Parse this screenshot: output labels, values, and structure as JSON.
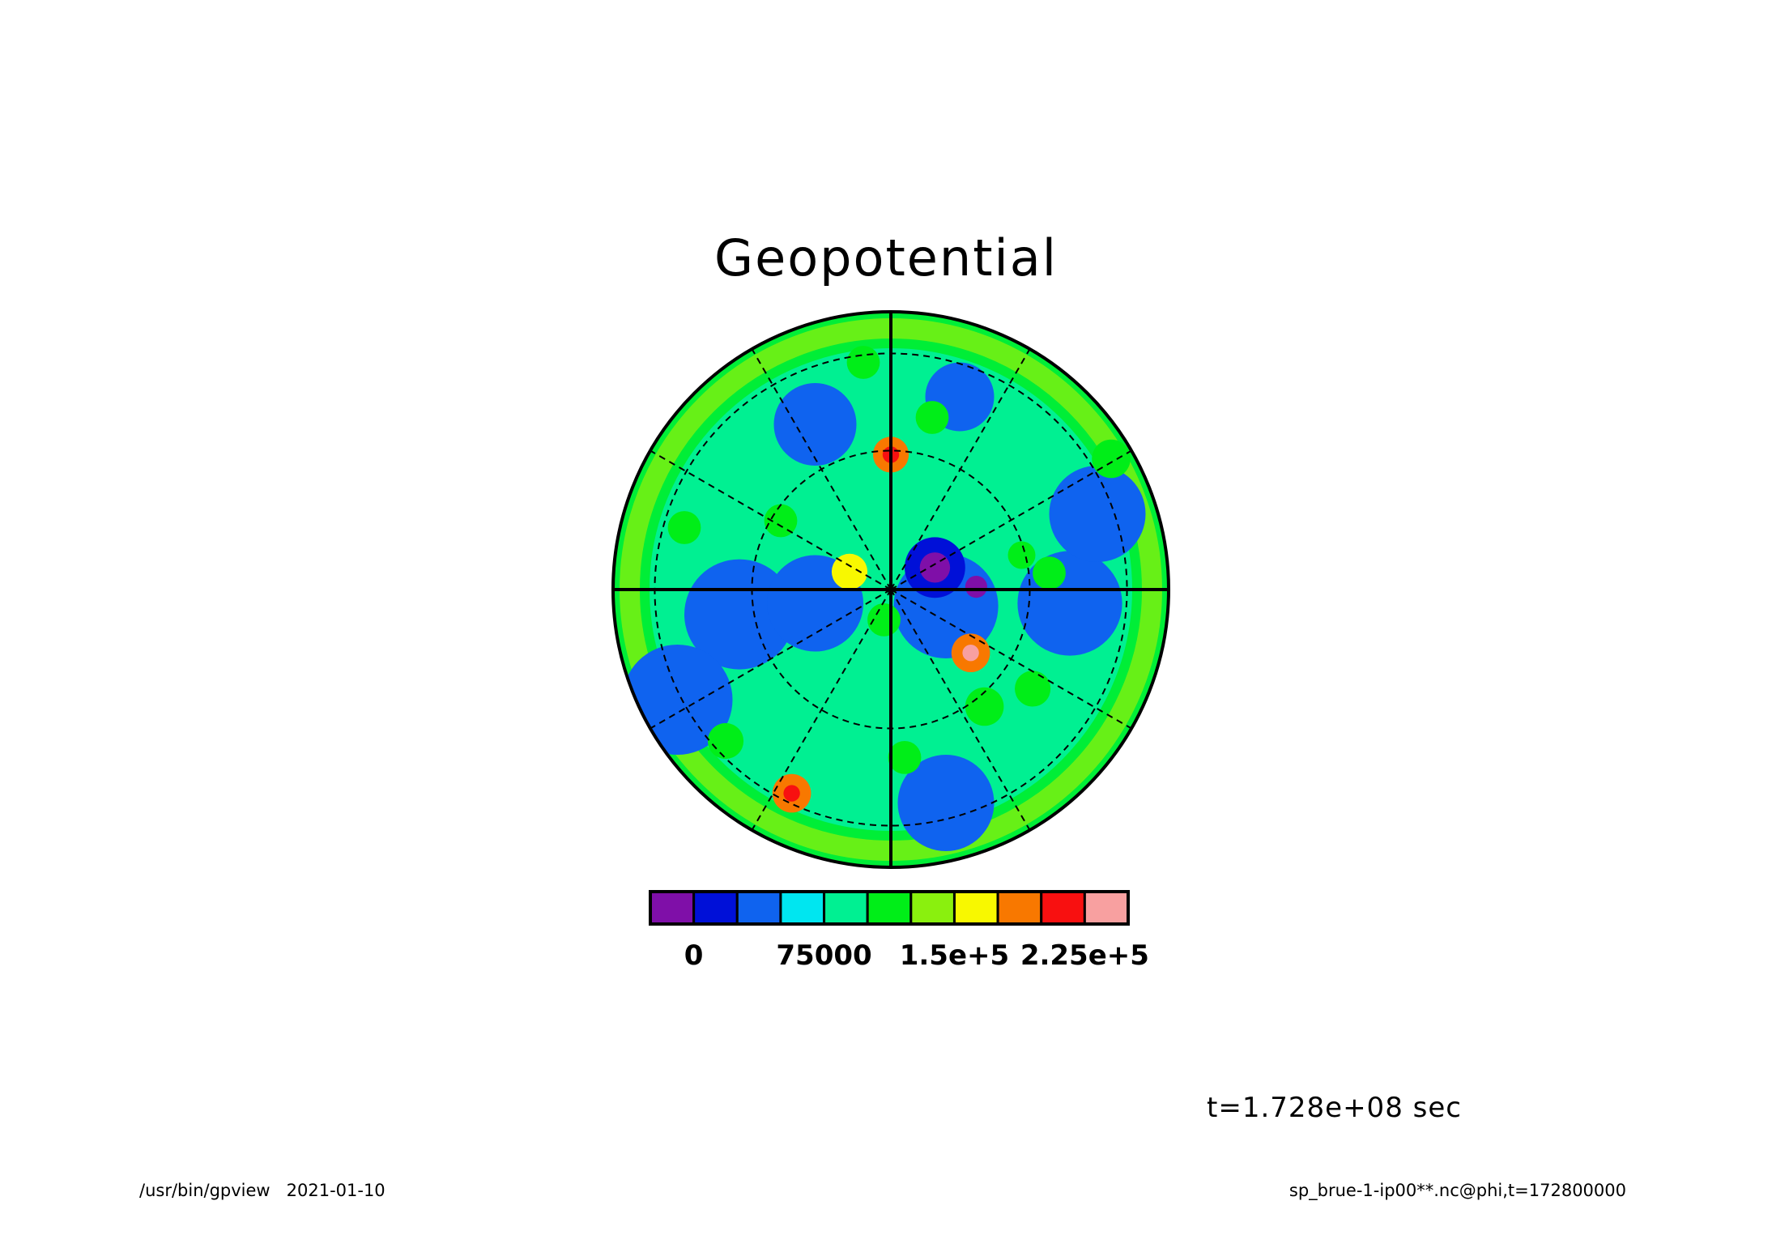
{
  "header": {
    "title": "Geopotential"
  },
  "annotations": {
    "time": "t=1.728e+08 sec",
    "footer_left": "/usr/bin/gpview   2021-01-10",
    "footer_right": "sp_brue-1-ip00**.nc@phi,t=172800000"
  },
  "chart_data": {
    "type": "heatmap",
    "projection": "polar-stereographic",
    "title": "Geopotential",
    "variable": "phi",
    "grid": true,
    "colorbar": {
      "orientation": "horizontal",
      "placement": "bottom",
      "levels": [
        -25000,
        0,
        25000,
        50000,
        75000,
        100000,
        125000,
        150000,
        175000,
        200000,
        225000,
        250000
      ],
      "colors": [
        "#7f0fa8",
        "#0010d8",
        "#0f63ef",
        "#00e6f0",
        "#00f092",
        "#00ee18",
        "#8af00e",
        "#f8f800",
        "#f87800",
        "#f81010",
        "#f8a0a0"
      ],
      "tick_values": [
        0,
        75000,
        150000,
        225000
      ],
      "tick_labels": [
        "0",
        "75000",
        "1.5e+5",
        "2.25e+5"
      ]
    },
    "features": [
      {
        "x": 0.0,
        "y": 0.98,
        "r": 0.13,
        "value": 175000
      },
      {
        "x": 0.0,
        "y": 0.98,
        "r": 0.06,
        "value": 215000
      },
      {
        "x": 0.58,
        "y": -0.46,
        "r": 0.14,
        "value": 190000
      },
      {
        "x": 0.58,
        "y": -0.46,
        "r": 0.06,
        "value": 230000
      },
      {
        "x": -0.3,
        "y": 0.13,
        "r": 0.13,
        "value": 160000
      },
      {
        "x": -0.72,
        "y": -1.48,
        "r": 0.14,
        "value": 180000
      },
      {
        "x": -0.72,
        "y": -1.48,
        "r": 0.06,
        "value": 215000
      },
      {
        "x": 0.32,
        "y": 0.16,
        "r": 0.22,
        "value": 15000
      },
      {
        "x": 0.32,
        "y": 0.16,
        "r": 0.11,
        "value": -8000
      },
      {
        "x": 0.62,
        "y": 0.02,
        "r": 0.08,
        "value": -5000
      },
      {
        "x": 0.4,
        "y": -0.12,
        "r": 0.38,
        "value": 35000
      },
      {
        "x": -1.1,
        "y": -0.18,
        "r": 0.4,
        "value": 40000
      },
      {
        "x": -0.55,
        "y": -0.1,
        "r": 0.35,
        "value": 40000
      },
      {
        "x": 1.3,
        "y": -0.1,
        "r": 0.38,
        "value": 40000
      },
      {
        "x": -1.55,
        "y": -0.8,
        "r": 0.4,
        "value": 45000
      },
      {
        "x": -0.55,
        "y": 1.2,
        "r": 0.3,
        "value": 45000
      },
      {
        "x": 0.4,
        "y": -1.55,
        "r": 0.35,
        "value": 45000
      },
      {
        "x": 1.5,
        "y": 0.55,
        "r": 0.35,
        "value": 45000
      },
      {
        "x": 0.5,
        "y": 1.4,
        "r": 0.25,
        "value": 45000
      },
      {
        "x": -0.05,
        "y": -0.22,
        "r": 0.12,
        "value": 110000
      },
      {
        "x": 0.68,
        "y": -0.85,
        "r": 0.14,
        "value": 120000
      },
      {
        "x": 1.15,
        "y": 0.12,
        "r": 0.12,
        "value": 118000
      },
      {
        "x": 1.03,
        "y": -0.72,
        "r": 0.13,
        "value": 115000
      },
      {
        "x": -1.5,
        "y": 0.45,
        "r": 0.12,
        "value": 112000
      },
      {
        "x": -1.2,
        "y": -1.1,
        "r": 0.13,
        "value": 115000
      },
      {
        "x": -0.8,
        "y": 0.5,
        "r": 0.12,
        "value": 112000
      },
      {
        "x": 0.1,
        "y": -1.22,
        "r": 0.12,
        "value": 115000
      },
      {
        "x": 0.3,
        "y": 1.25,
        "r": 0.12,
        "value": 110000
      },
      {
        "x": 1.6,
        "y": 0.95,
        "r": 0.14,
        "value": 112000
      },
      {
        "x": -0.2,
        "y": 1.65,
        "r": 0.12,
        "value": 112000
      },
      {
        "x": 0.95,
        "y": 0.25,
        "r": 0.1,
        "value": 108000
      }
    ]
  }
}
